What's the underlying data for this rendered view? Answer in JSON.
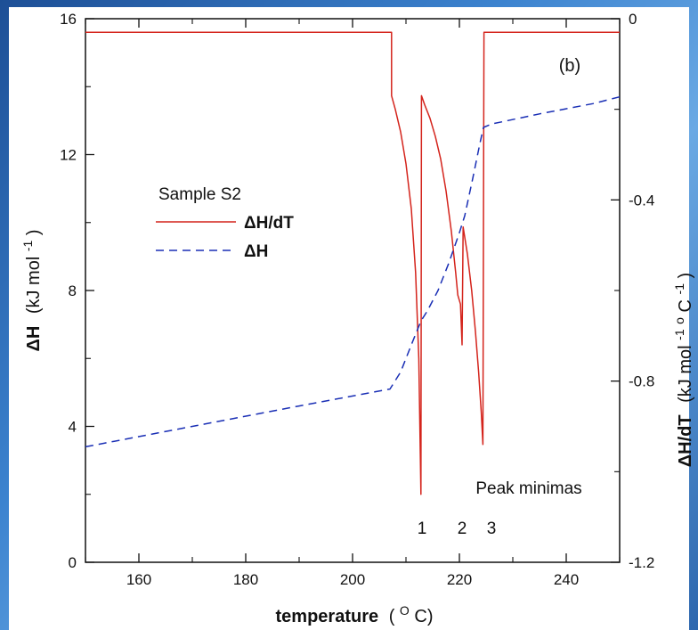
{
  "chart_data": {
    "type": "line",
    "panel_label": "(b)",
    "x": {
      "label": "temperature",
      "unit_prefix": "(",
      "unit_sup": "O",
      "unit_suffix": "C)",
      "range": [
        150,
        250
      ],
      "ticks": [
        160,
        180,
        200,
        220,
        240
      ],
      "tick_labels": [
        "160",
        "180",
        "200",
        "220",
        "240"
      ]
    },
    "y_left": {
      "label_main": "ΔH",
      "label_unit": "(kJ mol",
      "label_sup": "-1",
      "label_close": ")",
      "range": [
        0,
        16
      ],
      "ticks": [
        0,
        4,
        8,
        12,
        16
      ],
      "tick_labels": [
        "0",
        "4",
        "8",
        "12",
        "16"
      ]
    },
    "y_right": {
      "label_main": "ΔH/dT",
      "label_unit": "(kJ mol",
      "label_sup1": "-1",
      "label_mid": " o",
      "label_c": "C",
      "label_sup2": "-1",
      "label_close": ")",
      "range": [
        -1.2,
        0
      ],
      "ticks": [
        0,
        -0.4,
        -0.8,
        -1.2
      ],
      "tick_labels": [
        "0",
        "-0.4",
        "-0.8",
        "-1.2"
      ]
    },
    "legend": {
      "title": "Sample S2",
      "position": "middle-left",
      "entries": [
        "ΔH/dT",
        "ΔH"
      ]
    },
    "annotations": {
      "peak_title": "Peak minimas",
      "peak_labels": [
        {
          "text": "1",
          "x": 213
        },
        {
          "text": "2",
          "x": 220.5
        },
        {
          "text": "3",
          "x": 226
        }
      ]
    },
    "series": [
      {
        "name": "ΔH/dT",
        "axis": "right",
        "color": "#d4241c",
        "style": "solid",
        "points": [
          [
            150,
            -0.03
          ],
          [
            207.3,
            -0.03
          ],
          [
            207.3,
            -0.17
          ],
          [
            208,
            -0.2
          ],
          [
            209,
            -0.25
          ],
          [
            210,
            -0.32
          ],
          [
            211,
            -0.42
          ],
          [
            211.8,
            -0.56
          ],
          [
            212.4,
            -0.75
          ],
          [
            212.8,
            -1.05
          ],
          [
            212.9,
            -0.17
          ],
          [
            213.5,
            -0.19
          ],
          [
            214.5,
            -0.22
          ],
          [
            215.5,
            -0.26
          ],
          [
            216.5,
            -0.31
          ],
          [
            217.5,
            -0.38
          ],
          [
            218.5,
            -0.47
          ],
          [
            219.3,
            -0.56
          ],
          [
            219.7,
            -0.61
          ],
          [
            220.2,
            -0.63
          ],
          [
            220.5,
            -0.72
          ],
          [
            220.7,
            -0.46
          ],
          [
            221.5,
            -0.52
          ],
          [
            222.3,
            -0.6
          ],
          [
            223,
            -0.69
          ],
          [
            223.6,
            -0.78
          ],
          [
            224.1,
            -0.87
          ],
          [
            224.4,
            -0.94
          ],
          [
            224.6,
            -0.03
          ],
          [
            250,
            -0.03
          ]
        ]
      },
      {
        "name": "ΔH",
        "axis": "left",
        "color": "#1a2fb5",
        "style": "dashed",
        "points": [
          [
            150,
            3.4
          ],
          [
            170,
            4.0
          ],
          [
            190,
            4.6
          ],
          [
            207,
            5.1
          ],
          [
            209,
            5.6
          ],
          [
            211,
            6.4
          ],
          [
            212.8,
            7.1
          ],
          [
            214,
            7.4
          ],
          [
            216,
            8.0
          ],
          [
            218,
            8.8
          ],
          [
            220,
            9.7
          ],
          [
            221,
            10.2
          ],
          [
            222.5,
            11.3
          ],
          [
            223.8,
            12.3
          ],
          [
            224.5,
            12.8
          ],
          [
            226,
            12.9
          ],
          [
            235,
            13.2
          ],
          [
            245,
            13.5
          ],
          [
            250,
            13.7
          ]
        ]
      }
    ]
  }
}
